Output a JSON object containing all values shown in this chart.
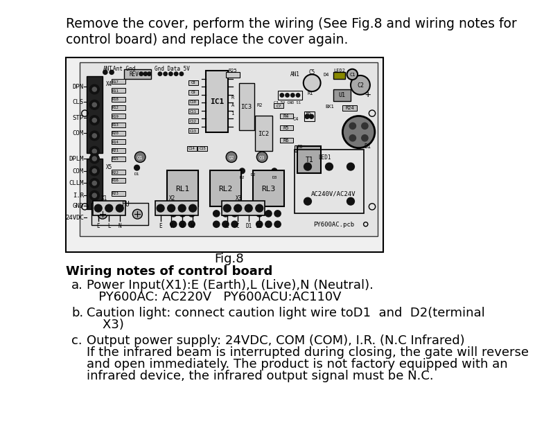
{
  "bg_color": "#ffffff",
  "title_lines": [
    "Remove the cover, perform the wiring (See Fig.8 and wiring notes for",
    "control board) and replace the cover again."
  ],
  "fig_caption": "Fig.8",
  "section_title": "Wiring notes of control board",
  "items": [
    {
      "label": "a.",
      "lines": [
        "Power Input(X1):E (Earth),L (Live),N (Neutral).",
        "   PY600AC: AC220V   PY600ACU:AC110V"
      ]
    },
    {
      "label": "b.",
      "lines": [
        "Caution light: connect caution light wire toD1  and  D2(terminal",
        "    X3)"
      ]
    },
    {
      "label": "c.",
      "lines": [
        "Output power supply: 24VDC, COM (COM), I.R. (N.C Infrared)",
        "If the infrared beam is interrupted during closing, the gate will reverse",
        "and open immediately. The product is not factory equipped with an",
        "infrared device, the infrared output signal must be N.C."
      ]
    }
  ],
  "font_size_title": 13.5,
  "font_size_caption": 13,
  "font_size_section": 13,
  "font_size_body": 13,
  "text_color": "#000000",
  "border_color": "#000000"
}
